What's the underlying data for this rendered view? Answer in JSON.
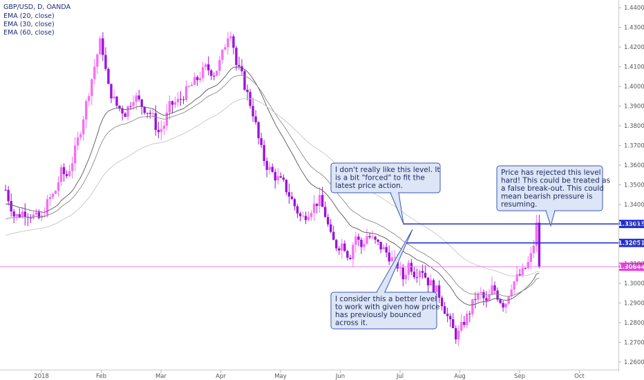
{
  "legend": {
    "symbol_line": "GBP/USD, D, OANDA",
    "ema_lines": [
      "EMA (20, close)",
      "EMA (30, close)",
      "EMA (60, close)"
    ]
  },
  "colors": {
    "candle_up": "#f56ff5",
    "candle_down": "#9b13d8",
    "level_line": "#1f2bd8",
    "price_line": "#f57af5",
    "note_fill": "#dde6f6",
    "note_stroke": "#3a56b8",
    "ema": [
      "#555555",
      "#8a8a8a",
      "#c6c6c6"
    ]
  },
  "chart_data": {
    "type": "candlestick",
    "symbol": "GBP/USD",
    "timeframe": "D",
    "source": "OANDA",
    "x_labels": [
      "2018",
      "Feb",
      "Mar",
      "Apr",
      "May",
      "Jun",
      "Jul",
      "Aug",
      "Sep",
      "Oct"
    ],
    "y_ticks": [
      "1.44000",
      "1.43000",
      "1.42000",
      "1.41000",
      "1.40000",
      "1.39000",
      "1.38000",
      "1.37000",
      "1.36000",
      "1.35000",
      "1.34000",
      "1.33000",
      "1.32000",
      "1.31000",
      "1.30000",
      "1.29000",
      "1.28000",
      "1.27000",
      "1.26000"
    ],
    "ylim": [
      1.2565,
      1.4425
    ],
    "levels": [
      {
        "value": 1.33015,
        "label": "1.33015",
        "color": "#1f2bd8",
        "from_month": 6.05
      },
      {
        "value": 1.32051,
        "label": "1.32051",
        "color": "#1f2bd8",
        "from_month": 6.1
      }
    ],
    "last_price": {
      "value": 1.30844,
      "label": "1.30844",
      "color": "#f57af5"
    },
    "price_path": [
      [
        -0.6,
        1.3475
      ],
      [
        -0.45,
        1.3335
      ],
      [
        -0.3,
        1.3365
      ],
      [
        -0.1,
        1.3335
      ],
      [
        0.0,
        1.3325
      ],
      [
        0.12,
        1.3425
      ],
      [
        0.22,
        1.3455
      ],
      [
        0.33,
        1.3565
      ],
      [
        0.42,
        1.3545
      ],
      [
        0.52,
        1.3625
      ],
      [
        0.65,
        1.3775
      ],
      [
        0.8,
        1.3985
      ],
      [
        0.95,
        1.4185
      ],
      [
        1.0,
        1.4245
      ],
      [
        1.05,
        1.4125
      ],
      [
        1.12,
        1.3995
      ],
      [
        1.25,
        1.3905
      ],
      [
        1.4,
        1.3865
      ],
      [
        1.55,
        1.3955
      ],
      [
        1.7,
        1.3895
      ],
      [
        1.85,
        1.3855
      ],
      [
        1.95,
        1.3765
      ],
      [
        2.05,
        1.3805
      ],
      [
        2.15,
        1.3905
      ],
      [
        2.3,
        1.3925
      ],
      [
        2.45,
        1.3985
      ],
      [
        2.6,
        1.4035
      ],
      [
        2.75,
        1.4095
      ],
      [
        2.9,
        1.4065
      ],
      [
        3.0,
        1.4135
      ],
      [
        3.12,
        1.4265
      ],
      [
        3.18,
        1.4285
      ],
      [
        3.25,
        1.4115
      ],
      [
        3.35,
        1.4055
      ],
      [
        3.45,
        1.3955
      ],
      [
        3.55,
        1.3855
      ],
      [
        3.65,
        1.3705
      ],
      [
        3.75,
        1.3605
      ],
      [
        3.9,
        1.3545
      ],
      [
        4.05,
        1.3505
      ],
      [
        4.2,
        1.3415
      ],
      [
        4.35,
        1.3325
      ],
      [
        4.5,
        1.3375
      ],
      [
        4.65,
        1.3425
      ],
      [
        4.75,
        1.3345
      ],
      [
        4.85,
        1.3225
      ],
      [
        4.95,
        1.3185
      ],
      [
        5.05,
        1.3205
      ],
      [
        5.15,
        1.3125
      ],
      [
        5.25,
        1.3245
      ],
      [
        5.35,
        1.3185
      ],
      [
        5.45,
        1.3245
      ],
      [
        5.6,
        1.3205
      ],
      [
        5.75,
        1.3165
      ],
      [
        5.85,
        1.3125
      ],
      [
        5.95,
        1.3095
      ],
      [
        6.05,
        1.3025
      ],
      [
        6.15,
        1.3105
      ],
      [
        6.25,
        1.3045
      ],
      [
        6.35,
        1.3085
      ],
      [
        6.45,
        1.3015
      ],
      [
        6.55,
        1.2985
      ],
      [
        6.65,
        1.2945
      ],
      [
        6.75,
        1.2865
      ],
      [
        6.85,
        1.2785
      ],
      [
        6.95,
        1.2725
      ],
      [
        7.05,
        1.2795
      ],
      [
        7.15,
        1.2845
      ],
      [
        7.25,
        1.2925
      ],
      [
        7.35,
        1.2945
      ],
      [
        7.45,
        1.2895
      ],
      [
        7.55,
        1.2985
      ],
      [
        7.65,
        1.2925
      ],
      [
        7.75,
        1.2885
      ],
      [
        7.85,
        1.2985
      ],
      [
        7.95,
        1.3025
      ],
      [
        8.05,
        1.3055
      ],
      [
        8.15,
        1.3105
      ],
      [
        8.22,
        1.3165
      ],
      [
        8.28,
        1.3301
      ],
      [
        8.32,
        1.3125
      ],
      [
        8.35,
        1.3084
      ]
    ]
  },
  "annotations": [
    {
      "id": "note-forced-level",
      "lines": [
        "I don't really like this level. It",
        "is a bit \"forced\" to fit the",
        "latest price action."
      ]
    },
    {
      "id": "note-better-level",
      "lines": [
        "I consider this a better level",
        "to work with given how price",
        "has previously bounced",
        "across it."
      ]
    },
    {
      "id": "note-rejection",
      "lines": [
        "Price has rejected this level",
        "hard! This could be treated as",
        "a false break-out. This could",
        "mean bearish pressure is",
        "resuming."
      ]
    }
  ]
}
